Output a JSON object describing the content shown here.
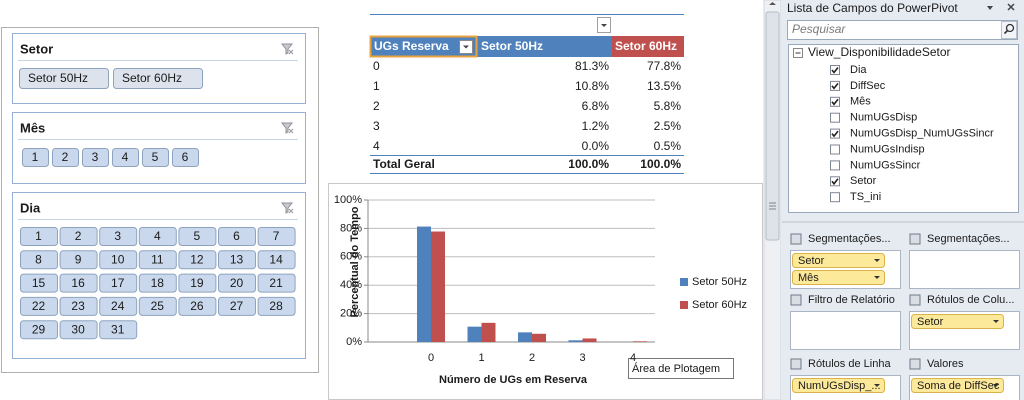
{
  "slicers": [
    {
      "title": "Setor",
      "items": [
        "Setor 50Hz",
        "Setor 60Hz"
      ]
    },
    {
      "title": "Mês",
      "items": [
        "1",
        "2",
        "3",
        "4",
        "5",
        "6"
      ]
    },
    {
      "title": "Dia",
      "items": [
        "1",
        "2",
        "3",
        "4",
        "5",
        "6",
        "7",
        "8",
        "9",
        "10",
        "11",
        "12",
        "13",
        "14",
        "15",
        "16",
        "17",
        "18",
        "19",
        "20",
        "21",
        "22",
        "23",
        "24",
        "25",
        "26",
        "27",
        "28",
        "29",
        "30",
        "31"
      ]
    }
  ],
  "pivot_table": {
    "header": [
      "UGs  Reserva",
      "Setor 50Hz",
      "Setor 60Hz"
    ],
    "rows": [
      [
        "0",
        "81.3%",
        "77.8%"
      ],
      [
        "1",
        "10.8%",
        "13.5%"
      ],
      [
        "2",
        "6.8%",
        "5.8%"
      ],
      [
        "3",
        "1.2%",
        "2.5%"
      ],
      [
        "4",
        "0.0%",
        "0.5%"
      ],
      [
        "Total Geral",
        "100.0%",
        "100.0%"
      ]
    ]
  },
  "chart_data": {
    "type": "bar",
    "categories": [
      "0",
      "1",
      "2",
      "3",
      "4"
    ],
    "series": [
      {
        "name": "Setor 50Hz",
        "color": "#4f81bd",
        "values": [
          81.3,
          10.8,
          6.8,
          1.2,
          0.0
        ]
      },
      {
        "name": "Setor 60Hz",
        "color": "#c0504d",
        "values": [
          77.8,
          13.5,
          5.8,
          2.5,
          0.5
        ]
      }
    ],
    "ylim": [
      0,
      100
    ],
    "yticks": [
      {
        "value": 0,
        "label": "0%"
      },
      {
        "value": 20,
        "label": "20%"
      },
      {
        "value": 40,
        "label": "40%"
      },
      {
        "value": 60,
        "label": "60%"
      },
      {
        "value": 80,
        "label": "80%"
      },
      {
        "value": 100,
        "label": "100%"
      }
    ],
    "x_label": "Número de UGs  em Reserva",
    "y_label": "Percentual do Tempo",
    "grid": true,
    "legend": "right",
    "annotation": "Área de Plotagem"
  },
  "field_list": {
    "title": "Lista de Campos do PowerPivot",
    "search_placeholder": "Pesquisar",
    "table": "View_DisponibilidadeSetor",
    "fields": [
      {
        "name": "Dia",
        "checked": true
      },
      {
        "name": "DiffSec",
        "checked": true
      },
      {
        "name": "Mês",
        "checked": true
      },
      {
        "name": "NumUGsDisp",
        "checked": false
      },
      {
        "name": "NumUGsDisp_NumUGsSincr",
        "checked": true
      },
      {
        "name": "NumUGsIndisp",
        "checked": false
      },
      {
        "name": "NumUGsSincr",
        "checked": false
      },
      {
        "name": "Setor",
        "checked": true
      },
      {
        "name": "TS_ini",
        "checked": false
      }
    ],
    "areas": [
      {
        "title": "Segmentações...",
        "items": [
          "Setor",
          "Mês"
        ]
      },
      {
        "title": "Segmentações..."
      },
      {
        "title": "Filtro de Relatório"
      },
      {
        "title": "Rótulos de Colu...",
        "items": [
          "Setor"
        ]
      },
      {
        "title": "Rótulos de Linha",
        "items": [
          "NumUGsDisp_..."
        ]
      },
      {
        "title": "Valores",
        "items": [
          "Soma de DiffSec"
        ]
      }
    ]
  }
}
